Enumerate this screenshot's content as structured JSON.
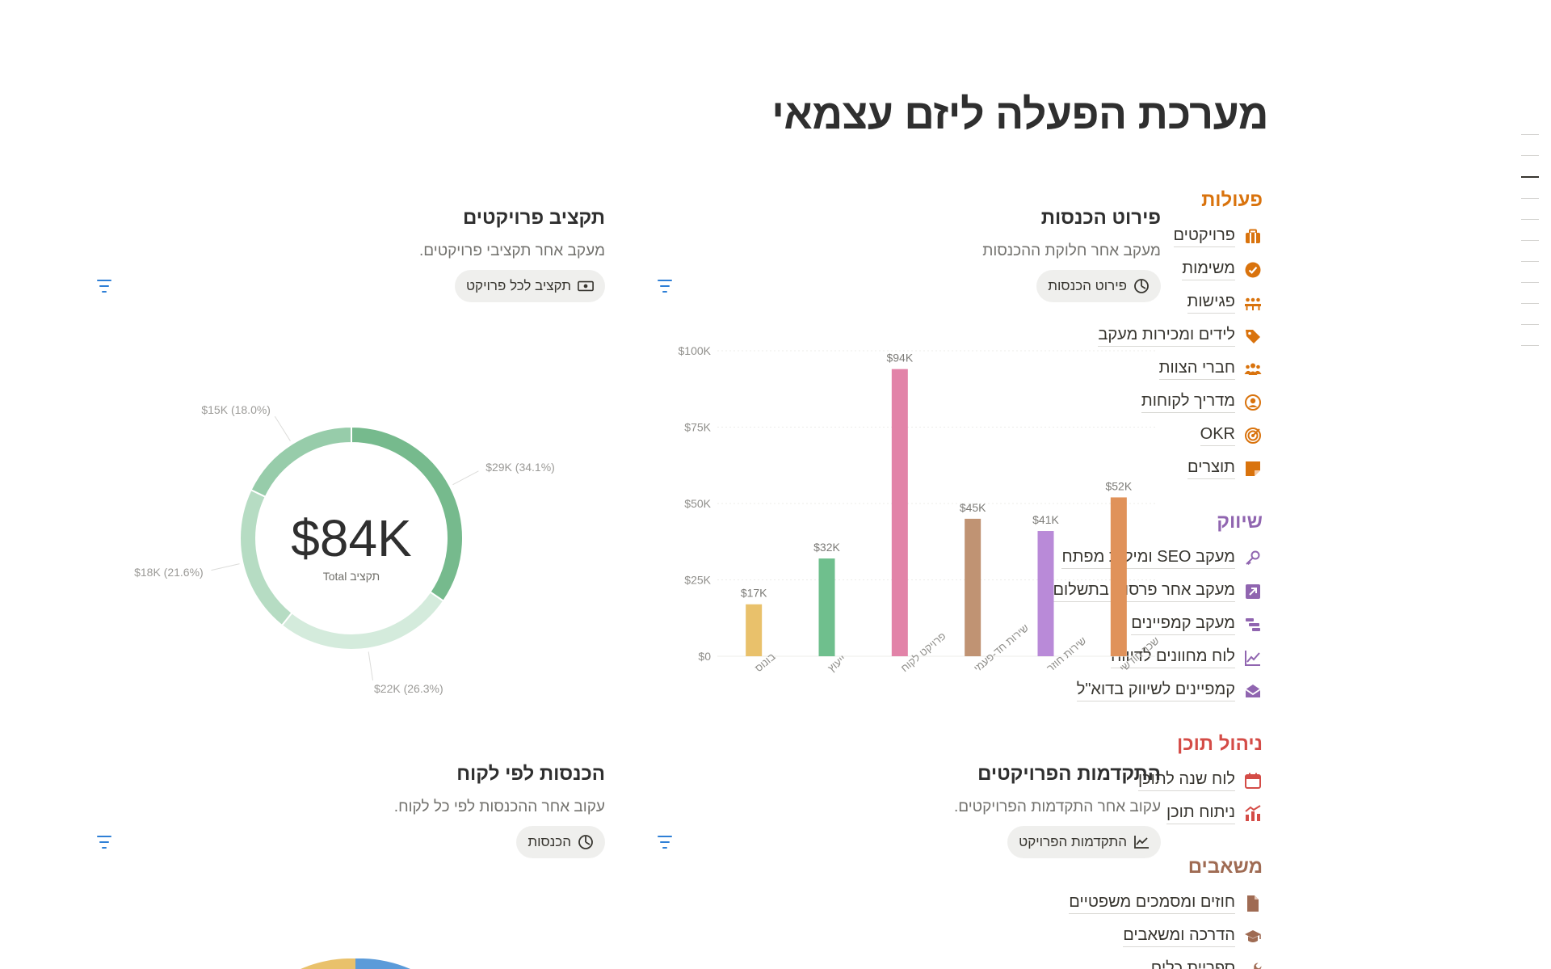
{
  "page": {
    "title": "מערכת הפעלה ליזם עצמאי"
  },
  "nav": {
    "sections": [
      {
        "heading": "פעולות",
        "color": "#d9730d",
        "items": [
          {
            "label": "פרויקטים",
            "icon": "briefcase-icon"
          },
          {
            "label": "משימות",
            "icon": "check-circle-icon"
          },
          {
            "label": "פגישות",
            "icon": "people-meeting-icon"
          },
          {
            "label": "לידים ומכירות מעקב",
            "icon": "tag-icon"
          },
          {
            "label": "חברי הצוות",
            "icon": "team-icon"
          },
          {
            "label": "מדריך לקוחות",
            "icon": "user-circle-icon"
          },
          {
            "label": "OKR",
            "icon": "target-icon"
          },
          {
            "label": "תוצרים",
            "icon": "sticky-note-icon"
          }
        ]
      },
      {
        "heading": "שיווק",
        "color": "#9065b0",
        "items": [
          {
            "label": "מעקב SEO ומילות מפתח",
            "icon": "key-icon"
          },
          {
            "label": "מעקב אחר פרסום בתשלום",
            "icon": "arrow-box-icon"
          },
          {
            "label": "מעקב קמפיינים",
            "icon": "gantt-icon"
          },
          {
            "label": "לוח מחוונים לדיווח",
            "icon": "line-chart-icon"
          },
          {
            "label": "קמפיינים לשיווק בדוא\"ל",
            "icon": "mail-open-icon"
          }
        ]
      },
      {
        "heading": "ניהול תוכן",
        "color": "#d44c47",
        "items": [
          {
            "label": "לוח שנה לתוכן",
            "icon": "calendar-icon"
          },
          {
            "label": "ניתוח תוכן",
            "icon": "analytics-icon"
          }
        ]
      },
      {
        "heading": "משאבים",
        "color": "#9f6b53",
        "items": [
          {
            "label": "חוזים ומסמכים משפטיים",
            "icon": "document-icon"
          },
          {
            "label": "הדרכה ומשאבים",
            "icon": "graduation-cap-icon"
          },
          {
            "label": "ספריית כלים",
            "icon": "wrench-icon"
          }
        ]
      }
    ]
  },
  "cards": {
    "revenue_breakdown": {
      "title": "פירוט הכנסות",
      "subtitle": "מעקב אחר חלוקת ההכנסות",
      "view_label": "פירוט הכנסות",
      "view_icon": "pie-clock-icon"
    },
    "project_budget": {
      "title": "תקציב פרויקטים",
      "subtitle": "מעקב אחר תקציבי פרויקטים.",
      "view_label": "תקציב לכל פרויקט",
      "view_icon": "money-icon"
    },
    "project_progress": {
      "title": "התקדמות הפרויקטים",
      "subtitle": "עקוב אחר התקדמות הפרויקטים.",
      "view_label": "התקדמות הפרויקט",
      "view_icon": "trend-chart-icon"
    },
    "revenue_by_client": {
      "title": "הכנסות לפי לקוח",
      "subtitle": "עקוב אחר ההכנסות לפי כל לקוח.",
      "view_label": "הכנסות",
      "view_icon": "pie-clock-icon"
    }
  },
  "chart_data": [
    {
      "type": "bar",
      "categories": [
        "בונוס",
        "ייעוץ",
        "פרויקט לקוח",
        "שירות חד-פעמי",
        "שירות חוזר",
        "שכר חודשי"
      ],
      "values": [
        17,
        32,
        94,
        45,
        41,
        52
      ],
      "value_labels": [
        "$17K",
        "$32K",
        "$94K",
        "$45K",
        "$41K",
        "$52K"
      ],
      "colors": [
        "#e9c16b",
        "#6fbf8d",
        "#e283a8",
        "#c09373",
        "#b98ad8",
        "#e0925a"
      ],
      "yticks": [
        "$0",
        "$25K",
        "$50K",
        "$75K",
        "$100K"
      ],
      "ylim": [
        0,
        100
      ],
      "grid": true
    },
    {
      "type": "pie",
      "center_value": "$84K",
      "center_label": "Total תקציב",
      "values": [
        29,
        22,
        18,
        15
      ],
      "labels": [
        "$29K (34.1%)",
        "$22K (26.3%)",
        "$18K (21.6%)",
        "$15K (18.0%)"
      ],
      "colors": [
        "#76ba8d",
        "#d4ebdc",
        "#b6dcc3",
        "#97ccaa"
      ]
    }
  ]
}
